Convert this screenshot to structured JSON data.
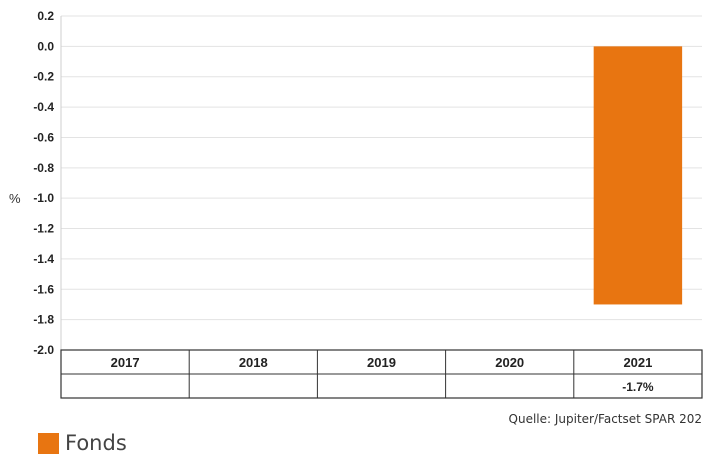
{
  "chart_data": {
    "type": "bar",
    "categories": [
      "2017",
      "2018",
      "2019",
      "2020",
      "2021"
    ],
    "series": [
      {
        "name": "Fonds",
        "values": [
          null,
          null,
          null,
          null,
          -1.7
        ],
        "value_labels": [
          "",
          "",
          "",
          "",
          "-1.7%"
        ],
        "color": "#E87511"
      }
    ],
    "ylabel": "%",
    "ylim": [
      -2.0,
      0.2
    ],
    "yticks": [
      "0.2",
      "0.0",
      "-0.2",
      "-0.4",
      "-0.6",
      "-0.8",
      "-1.0",
      "-1.2",
      "-1.4",
      "-1.6",
      "-1.8",
      "-2.0"
    ],
    "grid": true,
    "legend_position": "bottom-left"
  },
  "source": "Quelle: Jupiter/Factset SPAR 202",
  "legend": {
    "label": "Fonds",
    "color": "#E87511"
  }
}
